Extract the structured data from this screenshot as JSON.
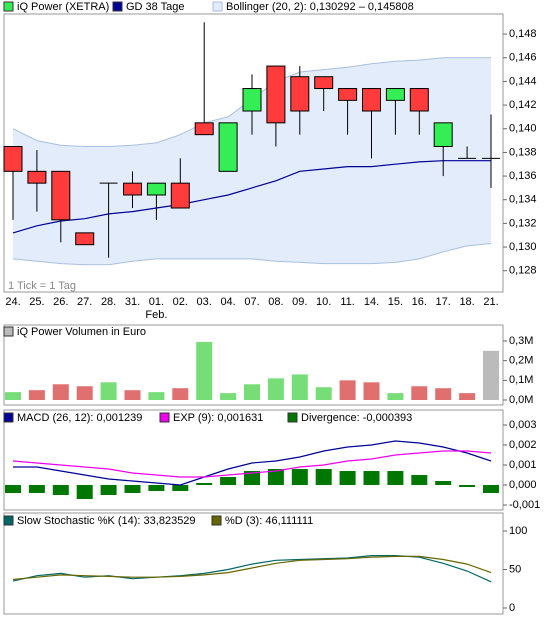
{
  "chart_data": [
    {
      "type": "candlestick",
      "categories": [
        "24.",
        "25.",
        "26.",
        "27.",
        "28.",
        "31.",
        "01.",
        "02.",
        "03.",
        "04.",
        "07.",
        "08.",
        "09.",
        "10.",
        "11.",
        "14.",
        "15.",
        "16.",
        "17.",
        "18.",
        "21."
      ],
      "month_label": "Feb.",
      "note": "1 Tick = 1 Tag",
      "ylim": [
        0.1262,
        0.1497
      ],
      "yticks": [
        {
          "value": 0.128,
          "label": "0,128"
        },
        {
          "value": 0.13,
          "label": "0,130"
        },
        {
          "value": 0.132,
          "label": "0,132"
        },
        {
          "value": 0.134,
          "label": "0,134"
        },
        {
          "value": 0.136,
          "label": "0,136"
        },
        {
          "value": 0.138,
          "label": "0,138"
        },
        {
          "value": 0.14,
          "label": "0,140"
        },
        {
          "value": 0.142,
          "label": "0,142"
        },
        {
          "value": 0.144,
          "label": "0,144"
        },
        {
          "value": 0.146,
          "label": "0,146"
        },
        {
          "value": 0.148,
          "label": "0,148"
        }
      ],
      "series": [
        {
          "name": "iQ Power (XETRA)",
          "type": "candlestick",
          "color": "#ffffff",
          "up_color": "#33ee55",
          "down_color": "#ff3b3b",
          "flat_color": "#000000",
          "open": [
            0.1385,
            0.1364,
            0.1364,
            0.1312,
            0.1354,
            0.1354,
            0.1344,
            0.1354,
            0.1405,
            0.1364,
            0.1415,
            0.1453,
            0.1444,
            0.1444,
            0.1434,
            0.1434,
            0.1424,
            0.1434,
            0.1385,
            0.1375,
            0.1375
          ],
          "high": [
            0.1385,
            0.1382,
            0.1364,
            0.1312,
            0.1354,
            0.1364,
            0.1354,
            0.1375,
            0.149,
            0.1405,
            0.1446,
            0.1453,
            0.1453,
            0.1444,
            0.1434,
            0.1434,
            0.1434,
            0.1434,
            0.1405,
            0.1385,
            0.1412
          ],
          "low": [
            0.1323,
            0.133,
            0.1304,
            0.1302,
            0.1291,
            0.1333,
            0.1323,
            0.1333,
            0.1395,
            0.1364,
            0.1395,
            0.1385,
            0.1395,
            0.1415,
            0.1395,
            0.1375,
            0.1395,
            0.1395,
            0.136,
            0.1375,
            0.135
          ],
          "close": [
            0.1364,
            0.1354,
            0.1323,
            0.1302,
            0.1354,
            0.1344,
            0.1354,
            0.1333,
            0.1395,
            0.1405,
            0.1434,
            0.1405,
            0.1415,
            0.1434,
            0.1424,
            0.1415,
            0.1434,
            0.1415,
            0.1405,
            0.1375,
            0.1375
          ]
        },
        {
          "name": "GD 38 Tage",
          "type": "line",
          "color": "#000099",
          "values": [
            0.1312,
            0.1318,
            0.1322,
            0.1324,
            0.1328,
            0.133,
            0.1333,
            0.1336,
            0.134,
            0.1344,
            0.135,
            0.1356,
            0.1364,
            0.1366,
            0.1368,
            0.1368,
            0.137,
            0.1372,
            0.1373,
            0.1373,
            0.1373
          ]
        },
        {
          "name": "Bollinger (20, 2): 0,130292 – 0,145808",
          "type": "band",
          "color": "#e3ecfa",
          "stroke": "#a9bfe3",
          "upper": [
            0.14,
            0.139,
            0.1386,
            0.1385,
            0.1385,
            0.1386,
            0.1388,
            0.1395,
            0.1405,
            0.141,
            0.1425,
            0.144,
            0.1448,
            0.145,
            0.1452,
            0.1455,
            0.1457,
            0.1458,
            0.146,
            0.146,
            0.146
          ],
          "lower": [
            0.129,
            0.1288,
            0.1286,
            0.1285,
            0.1285,
            0.1288,
            0.129,
            0.129,
            0.129,
            0.129,
            0.129,
            0.1288,
            0.1287,
            0.1286,
            0.1286,
            0.1286,
            0.1287,
            0.129,
            0.1296,
            0.1301,
            0.1303
          ]
        }
      ]
    },
    {
      "type": "bar",
      "ylim": [
        -25400,
        381300
      ],
      "yticks": [
        {
          "value": 0,
          "label": "0,0M"
        },
        {
          "value": 100000,
          "label": "0,1M"
        },
        {
          "value": 200000,
          "label": "0,2M"
        },
        {
          "value": 300000,
          "label": "0,3M"
        }
      ],
      "series": [
        {
          "name": "iQ Power Volumen in Euro",
          "type": "bar",
          "color": "#bbbbbb",
          "values": [
            40000,
            50000,
            80000,
            70000,
            90000,
            50000,
            40000,
            60000,
            295000,
            35000,
            80000,
            110000,
            130000,
            65000,
            100000,
            90000,
            35000,
            70000,
            60000,
            35000,
            250000
          ],
          "colors": [
            "#77dd77",
            "#e07070",
            "#e07070",
            "#e07070",
            "#77dd77",
            "#e07070",
            "#77dd77",
            "#e07070",
            "#77dd77",
            "#77dd77",
            "#77dd77",
            "#77dd77",
            "#77dd77",
            "#77dd77",
            "#e07070",
            "#e07070",
            "#77dd77",
            "#e07070",
            "#e07070",
            "#e07070",
            "#bbbbbb"
          ]
        }
      ]
    },
    {
      "type": "line",
      "ylim": [
        -0.00125,
        0.00375
      ],
      "yticks": [
        {
          "value": -0.001,
          "label": "-0,001"
        },
        {
          "value": 0,
          "label": "0,000"
        },
        {
          "value": 0.001,
          "label": "0,001"
        },
        {
          "value": 0.002,
          "label": "0,002"
        },
        {
          "value": 0.003,
          "label": "0,003"
        }
      ],
      "series": [
        {
          "name": "MACD (26, 12): 0,001239",
          "type": "line",
          "color": "#000099",
          "values": [
            0.0009,
            0.0009,
            0.0007,
            0.0005,
            0.0003,
            0.0002,
            0.0001,
            0.0,
            0.0004,
            0.0008,
            0.0011,
            0.0012,
            0.0014,
            0.0017,
            0.0019,
            0.002,
            0.0022,
            0.0021,
            0.0019,
            0.0016,
            0.0012
          ]
        },
        {
          "name": "EXP (9): 0,001631",
          "type": "line",
          "color": "#ee00ee",
          "values": [
            0.0012,
            0.0011,
            0.001,
            0.0009,
            0.0008,
            0.0006,
            0.0005,
            0.0004,
            0.0004,
            0.0005,
            0.0006,
            0.0007,
            0.0009,
            0.001,
            0.0012,
            0.0013,
            0.0015,
            0.0016,
            0.0017,
            0.0017,
            0.0016
          ]
        },
        {
          "name": "Divergence: -0,000393",
          "type": "bar",
          "color": "#007700",
          "values": [
            -0.0004,
            -0.0004,
            -0.0005,
            -0.0007,
            -0.0005,
            -0.0004,
            -0.0003,
            -0.0003,
            0.0001,
            0.0004,
            0.0007,
            0.0008,
            0.0008,
            0.0008,
            0.0007,
            0.0007,
            0.0007,
            0.0005,
            0.0002,
            -0.0001,
            -0.0004
          ]
        }
      ]
    },
    {
      "type": "line",
      "ylim": [
        -7.8,
        123.4
      ],
      "yticks": [
        0,
        50,
        100
      ],
      "series": [
        {
          "name": "Slow Stochastic %K (14): 33,823529",
          "type": "line",
          "color": "#006666",
          "values": [
            35,
            42,
            45,
            40,
            42,
            38,
            40,
            42,
            45,
            50,
            57,
            62,
            63,
            64,
            65,
            68,
            68,
            66,
            58,
            48,
            34
          ]
        },
        {
          "name": "%D (3): 46,111111",
          "type": "line",
          "color": "#666600",
          "values": [
            37,
            40,
            43,
            42,
            41,
            40,
            40,
            41,
            43,
            46,
            52,
            58,
            62,
            63,
            64,
            66,
            67,
            67,
            63,
            57,
            46
          ]
        }
      ]
    }
  ]
}
